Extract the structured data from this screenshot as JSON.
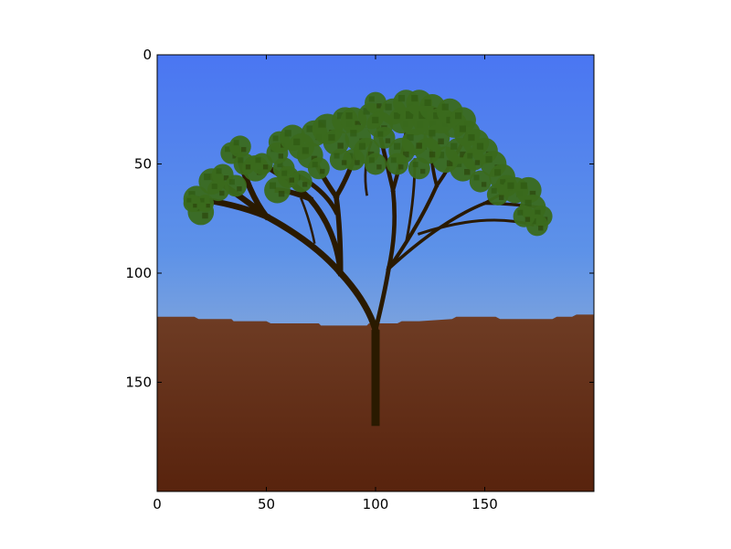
{
  "chart_data": {
    "type": "image",
    "title": "",
    "xlabel": "",
    "ylabel": "",
    "xlim": [
      0,
      200
    ],
    "ylim": [
      200,
      0
    ],
    "y_axis_inverted": true,
    "x_ticks": [
      0,
      50,
      100,
      150
    ],
    "y_ticks": [
      0,
      50,
      100,
      150
    ],
    "x_tick_labels": [
      "0",
      "50",
      "100",
      "150"
    ],
    "y_tick_labels": [
      "0",
      "50",
      "100",
      "150"
    ],
    "grid": false,
    "legend": "none",
    "image_content": "procedurally generated tree on ground under sky",
    "colors": {
      "sky_top": "#4a78f0",
      "sky_mid": "#7ca6dc",
      "horizon": "#c8bc9c",
      "ground_top": "#6e3a22",
      "ground_bottom": "#5a240e",
      "trunk": "#2a1a00",
      "leaves": "#3a6a1c"
    },
    "tree": {
      "trunk_base": [
        100,
        170
      ],
      "trunk_top": [
        100,
        126
      ],
      "ground_profile": [
        [
          0,
          120
        ],
        [
          17,
          120
        ],
        [
          19,
          121
        ],
        [
          34,
          121
        ],
        [
          35,
          122
        ],
        [
          50,
          122
        ],
        [
          52,
          123
        ],
        [
          74,
          123
        ],
        [
          75,
          124
        ],
        [
          96,
          124
        ],
        [
          97,
          123
        ],
        [
          110,
          123
        ],
        [
          112,
          122
        ],
        [
          120,
          122
        ],
        [
          135,
          121
        ],
        [
          137,
          120
        ],
        [
          155,
          120
        ],
        [
          157,
          121
        ],
        [
          181,
          121
        ],
        [
          183,
          120
        ],
        [
          190,
          120
        ],
        [
          192,
          119
        ],
        [
          200,
          119
        ]
      ],
      "branches": [
        [
          [
            100,
            126
          ],
          [
            96,
            113
          ],
          [
            84,
            100
          ]
        ],
        [
          [
            84,
            100
          ],
          [
            72,
            86
          ],
          [
            50,
            74
          ]
        ],
        [
          [
            50,
            74
          ],
          [
            35,
            68
          ],
          [
            18,
            66
          ]
        ],
        [
          [
            50,
            74
          ],
          [
            40,
            66
          ],
          [
            25,
            56
          ]
        ],
        [
          [
            50,
            74
          ],
          [
            42,
            64
          ],
          [
            36,
            42
          ]
        ],
        [
          [
            84,
            100
          ],
          [
            82,
            80
          ],
          [
            70,
            66
          ]
        ],
        [
          [
            70,
            66
          ],
          [
            62,
            58
          ],
          [
            48,
            50
          ]
        ],
        [
          [
            70,
            66
          ],
          [
            60,
            62
          ],
          [
            55,
            62
          ]
        ],
        [
          [
            84,
            100
          ],
          [
            84,
            80
          ],
          [
            82,
            65
          ]
        ],
        [
          [
            82,
            65
          ],
          [
            75,
            55
          ],
          [
            72,
            48
          ]
        ],
        [
          [
            82,
            65
          ],
          [
            88,
            55
          ],
          [
            92,
            42
          ]
        ],
        [
          [
            82,
            72
          ],
          [
            76,
            60
          ],
          [
            58,
            52
          ]
        ],
        [
          [
            100,
            126
          ],
          [
            104,
            110
          ],
          [
            106,
            98
          ]
        ],
        [
          [
            106,
            98
          ],
          [
            110,
            80
          ],
          [
            108,
            62
          ]
        ],
        [
          [
            108,
            62
          ],
          [
            104,
            45
          ],
          [
            100,
            28
          ]
        ],
        [
          [
            108,
            62
          ],
          [
            112,
            48
          ],
          [
            114,
            36
          ]
        ],
        [
          [
            106,
            98
          ],
          [
            120,
            78
          ],
          [
            128,
            60
          ]
        ],
        [
          [
            128,
            60
          ],
          [
            135,
            50
          ],
          [
            142,
            36
          ]
        ],
        [
          [
            128,
            60
          ],
          [
            124,
            45
          ],
          [
            126,
            30
          ]
        ],
        [
          [
            106,
            98
          ],
          [
            130,
            76
          ],
          [
            150,
            68
          ]
        ],
        [
          [
            150,
            68
          ],
          [
            162,
            68
          ],
          [
            176,
            70
          ]
        ],
        [
          [
            150,
            68
          ],
          [
            160,
            62
          ],
          [
            168,
            60
          ]
        ],
        [
          [
            120,
            82
          ],
          [
            150,
            72
          ],
          [
            172,
            78
          ]
        ],
        [
          [
            114,
            86
          ],
          [
            118,
            66
          ],
          [
            118,
            48
          ]
        ],
        [
          [
            96,
            64
          ],
          [
            94,
            52
          ],
          [
            98,
            40
          ]
        ],
        [
          [
            72,
            86
          ],
          [
            70,
            76
          ],
          [
            66,
            66
          ]
        ]
      ],
      "leaf_clusters": [
        [
          18,
          66,
          6
        ],
        [
          20,
          72,
          6
        ],
        [
          25,
          58,
          6
        ],
        [
          30,
          55,
          5
        ],
        [
          34,
          45,
          5
        ],
        [
          38,
          42,
          5
        ],
        [
          36,
          60,
          5
        ],
        [
          45,
          52,
          6
        ],
        [
          48,
          50,
          5
        ],
        [
          55,
          62,
          6
        ],
        [
          58,
          52,
          5
        ],
        [
          55,
          45,
          5
        ],
        [
          56,
          40,
          5
        ],
        [
          62,
          38,
          6
        ],
        [
          66,
          42,
          6
        ],
        [
          70,
          46,
          6
        ],
        [
          72,
          36,
          6
        ],
        [
          78,
          34,
          7
        ],
        [
          82,
          40,
          6
        ],
        [
          86,
          30,
          6
        ],
        [
          90,
          30,
          6
        ],
        [
          92,
          38,
          6
        ],
        [
          96,
          44,
          6
        ],
        [
          98,
          28,
          6
        ],
        [
          100,
          22,
          5
        ],
        [
          102,
          32,
          6
        ],
        [
          104,
          38,
          5
        ],
        [
          108,
          26,
          6
        ],
        [
          112,
          30,
          6
        ],
        [
          114,
          22,
          6
        ],
        [
          118,
          30,
          7
        ],
        [
          120,
          22,
          6
        ],
        [
          124,
          30,
          7
        ],
        [
          126,
          24,
          6
        ],
        [
          130,
          30,
          6
        ],
        [
          134,
          26,
          6
        ],
        [
          136,
          32,
          6
        ],
        [
          140,
          30,
          6
        ],
        [
          142,
          36,
          6
        ],
        [
          146,
          40,
          6
        ],
        [
          150,
          44,
          6
        ],
        [
          154,
          50,
          6
        ],
        [
          158,
          56,
          6
        ],
        [
          160,
          60,
          5
        ],
        [
          164,
          62,
          6
        ],
        [
          170,
          62,
          6
        ],
        [
          172,
          70,
          6
        ],
        [
          176,
          74,
          5
        ],
        [
          174,
          78,
          5
        ],
        [
          168,
          74,
          5
        ],
        [
          156,
          64,
          5
        ],
        [
          148,
          58,
          5
        ],
        [
          140,
          52,
          6
        ],
        [
          132,
          48,
          6
        ],
        [
          124,
          44,
          6
        ],
        [
          118,
          40,
          6
        ],
        [
          112,
          44,
          6
        ],
        [
          128,
          38,
          6
        ],
        [
          138,
          44,
          6
        ],
        [
          145,
          48,
          5
        ],
        [
          120,
          52,
          5
        ],
        [
          110,
          50,
          5
        ],
        [
          100,
          50,
          5
        ],
        [
          90,
          48,
          5
        ],
        [
          84,
          48,
          5
        ],
        [
          74,
          52,
          5
        ],
        [
          66,
          58,
          5
        ],
        [
          60,
          56,
          5
        ],
        [
          40,
          50,
          5
        ],
        [
          28,
          62,
          5
        ],
        [
          22,
          68,
          4
        ],
        [
          16,
          68,
          4
        ]
      ]
    }
  }
}
